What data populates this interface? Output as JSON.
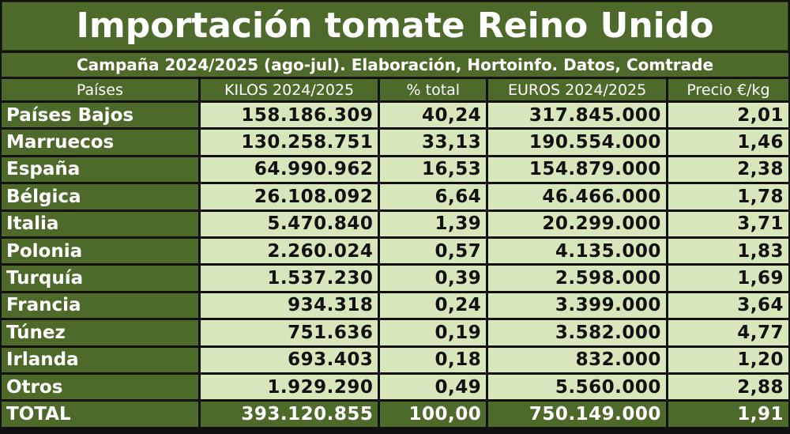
{
  "title": "Importación tomate Reino Unido",
  "subtitle": "Campaña 2024/2025 (ago-jul). Elaboración, Hortoinfo. Datos, Comtrade",
  "colors": {
    "header_green": "#4e6a2b",
    "cell_green": "#d6e7bb",
    "border": "#111111"
  },
  "chart_data": {
    "type": "table",
    "columns": [
      "Países",
      "KILOS 2024/2025",
      "% total",
      "EUROS 2024/2025",
      "Precio €/kg"
    ],
    "rows": [
      [
        "Países Bajos",
        "158.186.309",
        "40,24",
        "317.845.000",
        "2,01"
      ],
      [
        "Marruecos",
        "130.258.751",
        "33,13",
        "190.554.000",
        "1,46"
      ],
      [
        "España",
        "64.990.962",
        "16,53",
        "154.879.000",
        "2,38"
      ],
      [
        "Bélgica",
        "26.108.092",
        "6,64",
        "46.466.000",
        "1,78"
      ],
      [
        "Italia",
        "5.470.840",
        "1,39",
        "20.299.000",
        "3,71"
      ],
      [
        "Polonia",
        "2.260.024",
        "0,57",
        "4.135.000",
        "1,83"
      ],
      [
        "Turquía",
        "1.537.230",
        "0,39",
        "2.598.000",
        "1,69"
      ],
      [
        "Francia",
        "934.318",
        "0,24",
        "3.399.000",
        "3,64"
      ],
      [
        "Túnez",
        "751.636",
        "0,19",
        "3.582.000",
        "4,77"
      ],
      [
        "Irlanda",
        "693.403",
        "0,18",
        "832.000",
        "1,20"
      ],
      [
        "Otros",
        "1.929.290",
        "0,49",
        "5.560.000",
        "2,88"
      ]
    ],
    "total": [
      "TOTAL",
      "393.120.855",
      "100,00",
      "750.149.000",
      "1,91"
    ]
  }
}
